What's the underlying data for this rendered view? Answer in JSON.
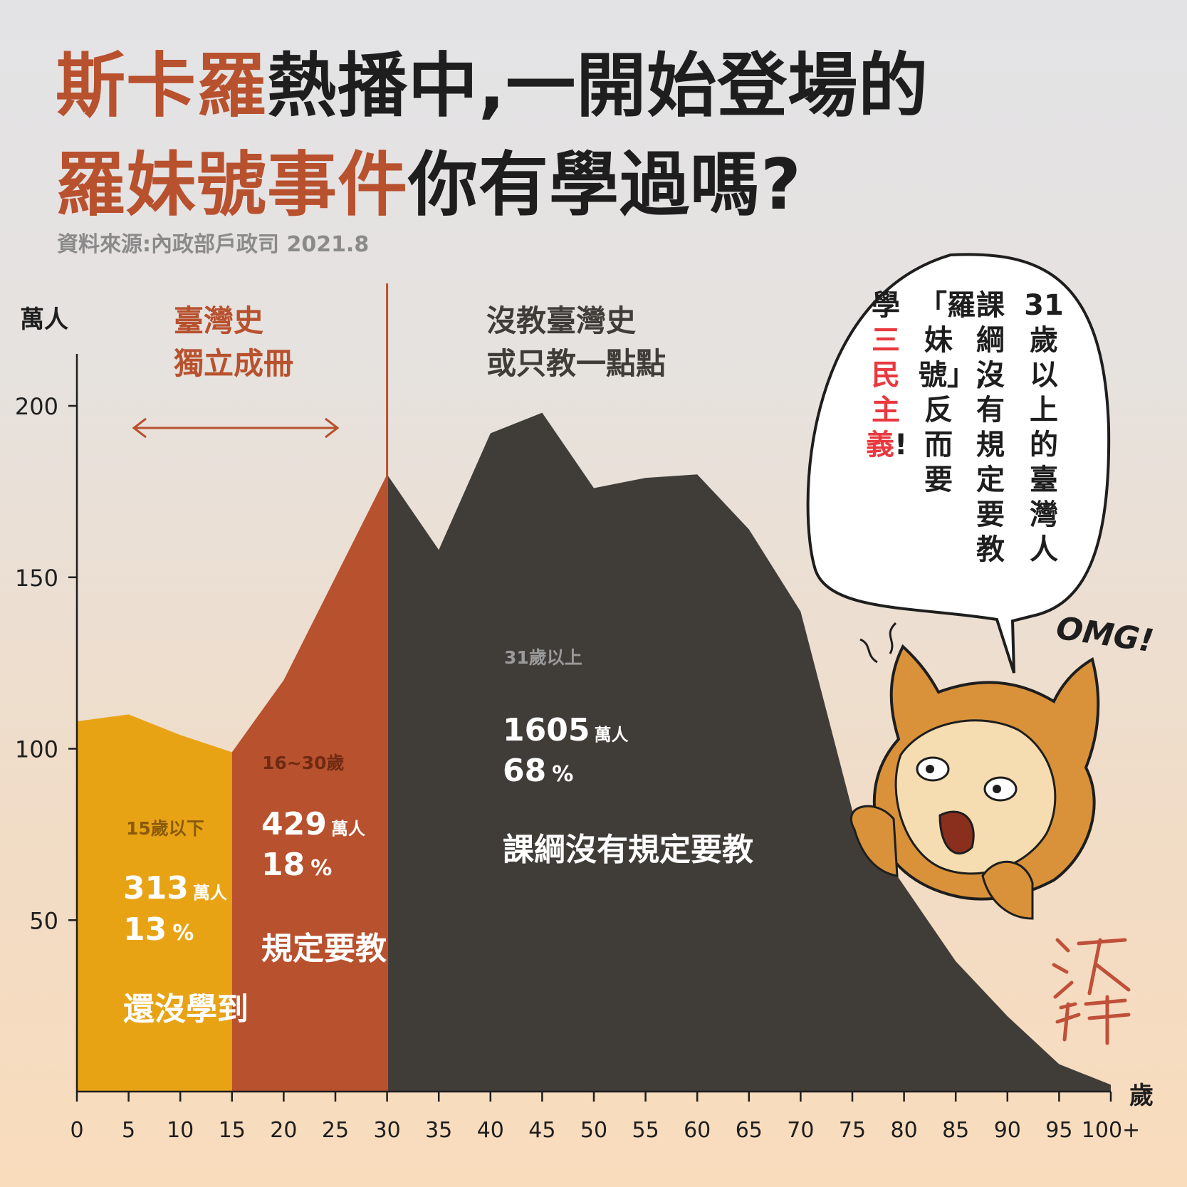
{
  "title": {
    "line1_highlight": "斯卡羅",
    "line1_rest": "熱播中,一開始登場的",
    "line2_highlight": "羅妹號事件",
    "line2_rest": "你有學過嗎?"
  },
  "source": "資料來源:內政部戶政司  2021.8",
  "colors": {
    "under15": "#e8a315",
    "age16_30": "#b8512e",
    "over31": "#403d39",
    "accent_red": "#e8393f",
    "text_dark": "#1e1e1e"
  },
  "speech_bubble": {
    "columns": [
      {
        "text": "31歲以上的臺灣人",
        "style": "normal"
      },
      {
        "text": "課綱沒有規定要教",
        "style": "normal"
      },
      {
        "text": "「羅妹號」,反而要",
        "style": "normal"
      },
      {
        "text": "學",
        "style": "normal",
        "continues": true
      },
      {
        "text": "三民主義",
        "style": "red",
        "continues": true
      },
      {
        "text": "!",
        "style": "normal",
        "continues": true
      }
    ],
    "exclamation": "OMG!"
  },
  "mascot": {
    "signature": "沃草",
    "icon": "cat-hood-mascot"
  },
  "chart_data": {
    "type": "area",
    "ylabel": "萬人",
    "xlabel": "歲",
    "ylim": [
      0,
      215
    ],
    "yticks": [
      50,
      100,
      150,
      200
    ],
    "x_ticks": [
      "0",
      "5",
      "10",
      "15",
      "20",
      "25",
      "30",
      "35",
      "40",
      "45",
      "50",
      "55",
      "60",
      "65",
      "70",
      "75",
      "80",
      "85",
      "90",
      "95",
      "100+"
    ],
    "x": [
      0,
      5,
      10,
      15,
      20,
      25,
      30,
      35,
      40,
      45,
      50,
      55,
      60,
      65,
      70,
      75,
      80,
      85,
      90,
      95,
      100
    ],
    "values": [
      108,
      110,
      104,
      99,
      120,
      150,
      180,
      158,
      192,
      198,
      176,
      179,
      180,
      164,
      140,
      82,
      60,
      38,
      22,
      8,
      2
    ],
    "divider_x": 30,
    "segments": [
      {
        "range": [
          0,
          15
        ],
        "label": "15歲以下",
        "count": "313",
        "unit": "萬人",
        "pct": "13",
        "pct_unit": "%",
        "note": "還沒學到",
        "color": "#e8a315",
        "label_color": "#8a5a0a"
      },
      {
        "range": [
          15,
          30
        ],
        "label": "16~30歲",
        "count": "429",
        "unit": "萬人",
        "pct": "18",
        "pct_unit": "%",
        "note": "規定要教",
        "color": "#b8512e",
        "label_color": "#6e2a12"
      },
      {
        "range": [
          30,
          100
        ],
        "label": "31歲以上",
        "count": "1605",
        "unit": "萬人",
        "pct": "68",
        "pct_unit": "%",
        "note": "課綱沒有規定要教",
        "color": "#403d39",
        "label_color": "#9a9a9a"
      }
    ],
    "annotations": {
      "left_lines": [
        "臺灣史",
        "獨立成冊"
      ],
      "right_lines": [
        "沒教臺灣史",
        "或只教一點點"
      ]
    }
  }
}
